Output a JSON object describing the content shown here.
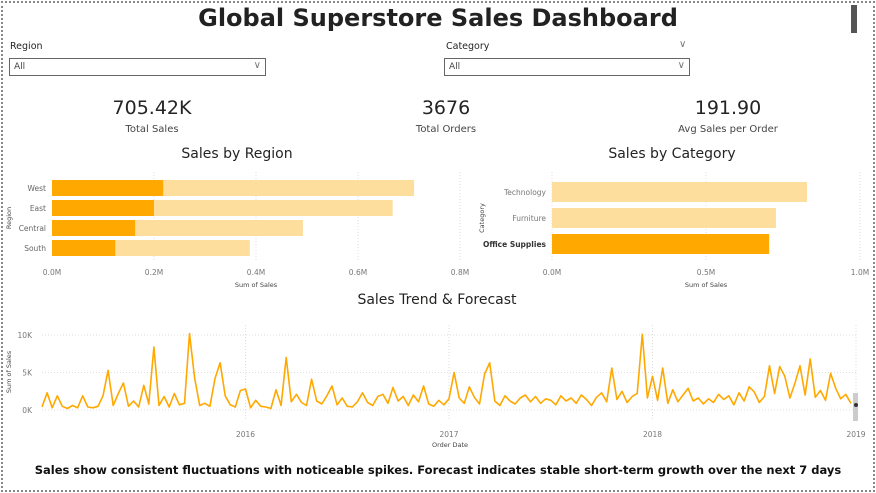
{
  "title": "Global Superstore Sales Dashboard",
  "slicers": {
    "region": {
      "label": "Region",
      "value": "All"
    },
    "category": {
      "label": "Category",
      "value": "All"
    }
  },
  "kpis": [
    {
      "value": "705.42K",
      "label": "Total Sales"
    },
    {
      "value": "3676",
      "label": "Total Orders"
    },
    {
      "value": "191.90",
      "label": "Avg Sales per Order"
    }
  ],
  "colors": {
    "highlight": "#FFA800",
    "base": "#FEDE9C",
    "grid": "#DDDDDD"
  },
  "chart_data": [
    {
      "type": "bar",
      "title": "Sales by Region",
      "orientation": "horizontal",
      "xlabel": "Sum of Sales",
      "ylabel": "Region",
      "categories": [
        "West",
        "East",
        "Central",
        "South"
      ],
      "series": [
        {
          "name": "Total",
          "values": [
            0.71,
            0.668,
            0.492,
            0.388
          ]
        },
        {
          "name": "Highlighted",
          "values": [
            0.218,
            0.2,
            0.163,
            0.124
          ]
        }
      ],
      "xlim": [
        0,
        0.8
      ],
      "xticks": [
        "0.0M",
        "0.2M",
        "0.4M",
        "0.6M",
        "0.8M"
      ],
      "grid": true
    },
    {
      "type": "bar",
      "title": "Sales by Category",
      "orientation": "horizontal",
      "xlabel": "Sum of Sales",
      "ylabel": "Category",
      "categories": [
        "Technology",
        "Furniture",
        "Office Supplies"
      ],
      "values": [
        0.828,
        0.727,
        0.705
      ],
      "highlighted": "Office Supplies",
      "xlim": [
        0,
        1.0
      ],
      "xticks": [
        "0.0M",
        "0.5M",
        "1.0M"
      ],
      "grid": true
    },
    {
      "type": "line",
      "title": "Sales Trend & Forecast",
      "xlabel": "Order Date",
      "ylabel": "Sum of Sales",
      "x_start": 2015.0,
      "x_step": 0.025,
      "xlim": [
        2015,
        2019
      ],
      "ylim": [
        0,
        10.5
      ],
      "xticks": [
        {
          "v": 2016,
          "label": "2016"
        },
        {
          "v": 2017,
          "label": "2017"
        },
        {
          "v": 2018,
          "label": "2018"
        },
        {
          "v": 2019,
          "label": "2019"
        }
      ],
      "yticks": [
        {
          "v": 0,
          "label": "0K"
        },
        {
          "v": 5,
          "label": "5K"
        },
        {
          "v": 10,
          "label": "10K"
        }
      ],
      "values_k": [
        0.4,
        2.3,
        0.3,
        1.9,
        0.5,
        0.2,
        0.6,
        0.3,
        1.9,
        0.4,
        0.3,
        0.5,
        1.9,
        5.3,
        0.6,
        2.2,
        3.6,
        0.5,
        1.2,
        0.4,
        3.3,
        0.8,
        8.4,
        0.6,
        1.8,
        0.4,
        2.2,
        0.7,
        0.9,
        10.2,
        4.3,
        0.6,
        0.9,
        0.5,
        4.2,
        6.3,
        1.9,
        0.7,
        0.4,
        2.6,
        2.8,
        0.3,
        1.3,
        0.5,
        0.4,
        0.2,
        2.7,
        0.6,
        7.0,
        1.1,
        2.1,
        1.0,
        0.6,
        4.1,
        1.2,
        0.8,
        1.9,
        3.2,
        0.7,
        1.6,
        0.5,
        0.4,
        1.1,
        2.3,
        1.0,
        0.6,
        1.8,
        2.1,
        0.9,
        3.0,
        1.2,
        1.8,
        0.6,
        2.0,
        1.1,
        3.2,
        0.8,
        0.5,
        1.3,
        0.7,
        1.5,
        5.0,
        1.6,
        0.9,
        3.1,
        1.7,
        0.8,
        4.8,
        6.3,
        1.2,
        0.6,
        1.9,
        1.2,
        0.8,
        1.6,
        2.0,
        1.1,
        1.8,
        0.9,
        1.5,
        1.3,
        0.7,
        1.9,
        1.2,
        1.6,
        0.9,
        2.0,
        1.4,
        0.6,
        1.7,
        2.3,
        1.1,
        5.6,
        1.4,
        2.5,
        1.0,
        1.8,
        2.2,
        10.1,
        1.6,
        4.5,
        1.3,
        5.6,
        0.9,
        2.7,
        1.1,
        2.0,
        2.9,
        1.2,
        1.6,
        0.8,
        1.5,
        1.0,
        2.1,
        1.4,
        1.9,
        0.7,
        2.3,
        1.2,
        3.1,
        2.4,
        1.0,
        1.8,
        5.9,
        2.2,
        5.8,
        4.5,
        1.6,
        3.6,
        5.9,
        2.0,
        6.8,
        1.7,
        2.6,
        1.3,
        4.9,
        2.9,
        1.5,
        2.1,
        0.9
      ]
    }
  ],
  "footer": "Sales show consistent fluctuations with noticeable spikes. Forecast indicates stable short-term growth over the next 7 days"
}
